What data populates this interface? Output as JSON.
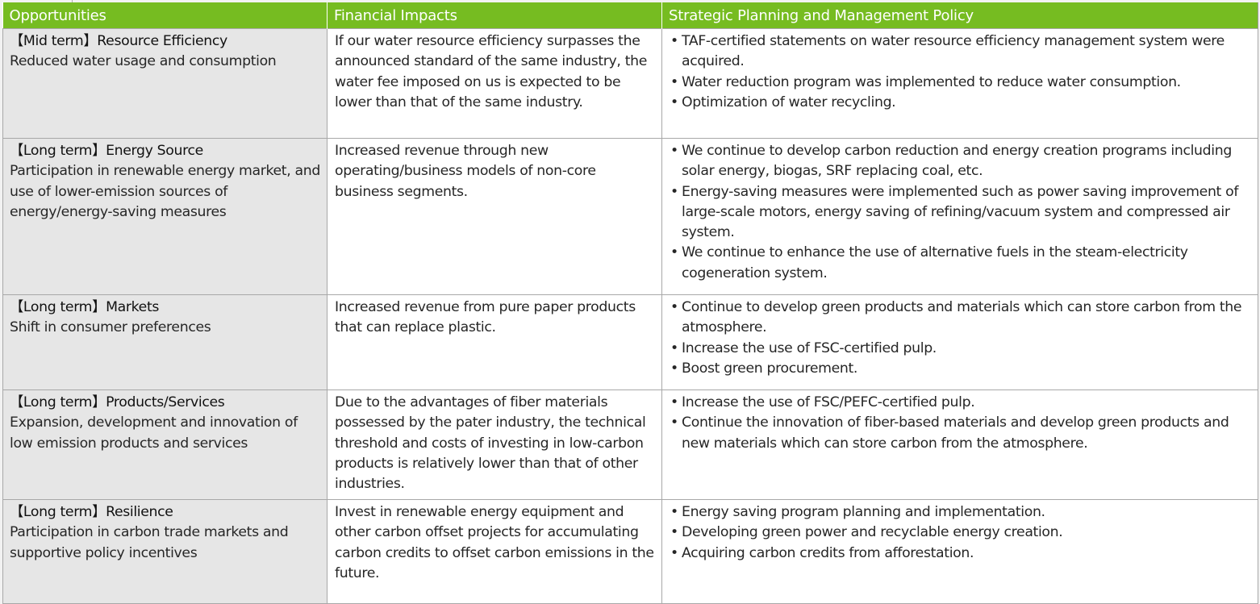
{
  "table": {
    "headers": [
      "Opportunities",
      "Financial Impacts",
      "Strategic Planning and Management Policy"
    ],
    "rows": [
      {
        "term": "【Mid term】",
        "category": "Resource Efficiency",
        "description": "Reduced water usage and consumption",
        "financial_impact": "If our water resource efficiency surpasses the announced standard of the same industry, the water fee imposed on us is expected to be lower than that of the same industry.",
        "policies": [
          "TAF-certified statements on water resource efficiency management system were acquired.",
          "Water reduction program was implemented to reduce water consumption.",
          "Optimization of water recycling."
        ]
      },
      {
        "term": "【Long term】",
        "category": "Energy Source",
        "description": "Participation in renewable energy market, and use of lower-emission sources of energy/energy-saving measures",
        "financial_impact": "Increased revenue through new operating/business models of non-core business segments.",
        "policies": [
          "We continue to develop carbon reduction and energy creation programs including solar energy, biogas, SRF replacing coal, etc.",
          "Energy-saving measures were implemented such as power saving improvement of large-scale motors, energy saving of refining/vacuum system and compressed air system.",
          "We continue to enhance the use of alternative fuels in the steam-electricity cogeneration system."
        ]
      },
      {
        "term": "【Long term】",
        "category": "Markets",
        "description": "Shift in consumer preferences",
        "financial_impact": "Increased revenue from pure paper products that can replace plastic.",
        "policies": [
          "Continue to develop green products and materials which can store carbon from the atmosphere.",
          "Increase the use of FSC-certified pulp.",
          "Boost green procurement."
        ]
      },
      {
        "term": "【Long term】",
        "category": "Products/Services",
        "description": "Expansion, development and innovation of low emission products and services",
        "financial_impact": "Due to the advantages of fiber materials possessed by the pater industry, the technical threshold and costs of investing in low-carbon products is relatively lower than that of other industries.",
        "policies": [
          "Increase the use of FSC/PEFC-certified pulp.",
          "Continue the innovation of fiber-based materials and develop green products and new materials which can store carbon from the atmosphere."
        ]
      },
      {
        "term": "【Long term】",
        "category": "Resilience",
        "description": "Participation in carbon trade markets and supportive policy incentives",
        "financial_impact": "Invest in renewable energy equipment and other carbon offset projects for accumulating carbon credits to offset carbon emissions in the future.",
        "policies": [
          "Energy saving program planning and implementation.",
          "Developing green power and recyclable energy creation.",
          "Acquiring carbon credits from afforestation."
        ]
      }
    ]
  },
  "colors": {
    "header_bg": "#76bc21",
    "header_text": "#ffffff",
    "category_cell_bg": "#e6e6e6",
    "border": "#a8a8a8"
  }
}
